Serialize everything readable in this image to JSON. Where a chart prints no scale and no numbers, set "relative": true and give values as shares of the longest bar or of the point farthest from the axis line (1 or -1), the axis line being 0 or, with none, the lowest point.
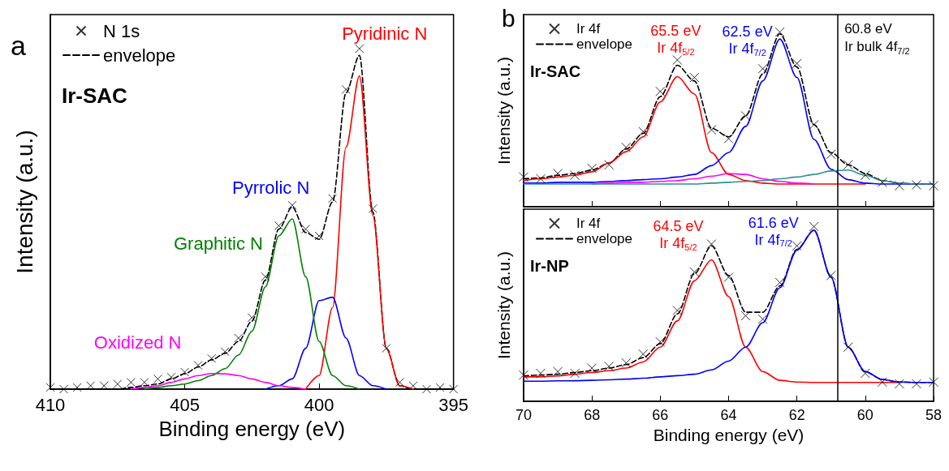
{
  "chart_data": [
    {
      "type": "line",
      "title": "a",
      "xlabel": "Binding energy (eV)",
      "ylabel": "Intensity (a.u.)",
      "relative": true,
      "legend": "top left",
      "tick_labels": "x",
      "annotations": [
        "Ir-SAC"
      ],
      "xlim": [
        410,
        395
      ],
      "xticks": [
        410,
        405,
        400,
        395
      ],
      "x": [
        410,
        409.5,
        409,
        408.5,
        408,
        407.5,
        407,
        406.5,
        406,
        405.5,
        405,
        404.5,
        404,
        403.5,
        403,
        402.5,
        402,
        401.5,
        401,
        400.5,
        400,
        399.5,
        399,
        398.5,
        398,
        397.5,
        397,
        396.5,
        396,
        395.5,
        395
      ],
      "series": [
        {
          "name": "N 1s",
          "type": "scatter",
          "marker": "cross",
          "color": "#000000",
          "values": [
            0.005,
            0,
            0.005,
            0.01,
            0.01,
            0.015,
            0.02,
            0.02,
            0.03,
            0.035,
            0.05,
            0.07,
            0.09,
            0.11,
            0.15,
            0.21,
            0.33,
            0.48,
            0.54,
            0.47,
            0.45,
            0.56,
            0.88,
            1.0,
            0.53,
            0.12,
            0.02,
            0.01,
            0,
            0.005,
            0
          ]
        },
        {
          "name": "envelope",
          "line_style": "dashed",
          "color": "#000000",
          "values": [
            0,
            0,
            0,
            0,
            0,
            0,
            0.005,
            0.01,
            0.015,
            0.03,
            0.045,
            0.065,
            0.086,
            0.105,
            0.14,
            0.2,
            0.32,
            0.47,
            0.535,
            0.46,
            0.44,
            0.55,
            0.87,
            0.98,
            0.52,
            0.12,
            0.01,
            0,
            0,
            0,
            0
          ]
        },
        {
          "name": "Pyridinic N",
          "color": "#ff0000",
          "values": [
            null,
            null,
            null,
            null,
            null,
            null,
            null,
            null,
            null,
            null,
            null,
            null,
            null,
            null,
            null,
            null,
            null,
            null,
            null,
            0,
            0.04,
            0.24,
            0.71,
            0.92,
            0.51,
            0.12,
            0.01,
            0,
            null,
            null,
            null
          ]
        },
        {
          "name": "Pyrrolic N",
          "color": "#0000ff",
          "values": [
            null,
            null,
            null,
            null,
            null,
            null,
            null,
            null,
            null,
            null,
            null,
            null,
            null,
            null,
            null,
            null,
            0,
            0.01,
            0.03,
            0.12,
            0.26,
            0.27,
            0.15,
            0.04,
            0.01,
            0,
            null,
            null,
            null,
            null,
            null
          ]
        },
        {
          "name": "Graphitic N",
          "color": "#008000",
          "values": [
            null,
            null,
            null,
            null,
            null,
            null,
            null,
            0,
            0.005,
            0.01,
            0.015,
            0.025,
            0.04,
            0.06,
            0.1,
            0.17,
            0.3,
            0.45,
            0.5,
            0.33,
            0.14,
            0.04,
            0.01,
            0,
            null,
            null,
            null,
            null,
            null,
            null,
            null
          ]
        },
        {
          "name": "Oxidized N",
          "color": "#ff00ff",
          "values": [
            null,
            null,
            null,
            null,
            null,
            null,
            0,
            0.005,
            0.01,
            0.02,
            0.03,
            0.04,
            0.046,
            0.045,
            0.04,
            0.03,
            0.02,
            0.01,
            0.005,
            0,
            null,
            null,
            null,
            null,
            null,
            null,
            null,
            null,
            null,
            null,
            null
          ]
        }
      ]
    },
    {
      "type": "line",
      "title": "b",
      "ylabel": "Intensity (a.u.)",
      "relative": true,
      "legend": "top left",
      "tick_labels": false,
      "annotations": [
        "Ir-SAC"
      ],
      "xlim": [
        70,
        58
      ],
      "xticks": [
        70,
        68,
        66,
        64,
        62,
        60,
        58
      ],
      "ref_lines": [
        {
          "axis": "x",
          "value": 60.8,
          "label": "60.8 eV\nIr bulk 4f$_{7/2}$",
          "color": "#000000"
        }
      ],
      "x": [
        70,
        69.5,
        69,
        68.5,
        68,
        67.5,
        67,
        66.5,
        66,
        65.5,
        65,
        64.5,
        64,
        63.5,
        63,
        62.5,
        62,
        61.5,
        61,
        60.5,
        60,
        59.5,
        59,
        58.5,
        58
      ],
      "series": [
        {
          "name": "Ir 4f",
          "type": "scatter",
          "marker": "cross",
          "color": "#000000",
          "values": [
            0.17,
            0.16,
            0.19,
            0.18,
            0.22,
            0.24,
            0.34,
            0.43,
            0.66,
            0.84,
            0.74,
            0.44,
            0.39,
            0.52,
            0.79,
            1.0,
            0.82,
            0.47,
            0.3,
            0.24,
            0.18,
            0.14,
            0.12,
            0.125,
            0.12
          ]
        },
        {
          "name": "envelope",
          "line_style": "dashed",
          "color": "#000000",
          "values": [
            0.16,
            0.165,
            0.18,
            0.19,
            0.21,
            0.25,
            0.33,
            0.42,
            0.63,
            0.81,
            0.72,
            0.45,
            0.4,
            0.52,
            0.76,
            0.99,
            0.8,
            0.47,
            0.31,
            0.24,
            0.19,
            0.15,
            0.135,
            0.13,
            0.13
          ]
        },
        {
          "name": "65.5 eV\nIr 4f$_{5/2}$",
          "color": "#ff0000",
          "values": [
            0.15,
            0.16,
            0.17,
            0.18,
            0.2,
            0.25,
            0.315,
            0.4,
            0.6,
            0.745,
            0.645,
            0.31,
            0.185,
            0.15,
            0.135,
            0.13,
            0.13,
            0.13,
            0.13,
            0.13,
            0.13,
            null,
            null,
            null,
            null
          ]
        },
        {
          "name": "62.5 eV\nIr 4f$_{7/2}$",
          "color": "#0000ff",
          "values": [
            0.135,
            0.135,
            0.14,
            0.14,
            0.14,
            0.145,
            0.15,
            0.155,
            0.16,
            0.17,
            0.185,
            0.235,
            0.31,
            0.46,
            0.72,
            0.96,
            0.74,
            0.385,
            0.215,
            0.155,
            0.135,
            0.13,
            0.13,
            0.13,
            0.13
          ]
        },
        {
          "color": "#ff00ff",
          "values": [
            null,
            null,
            null,
            null,
            0.13,
            0.135,
            0.14,
            0.14,
            0.145,
            0.15,
            0.16,
            0.175,
            0.19,
            0.185,
            0.16,
            0.145,
            0.135,
            0.13,
            null,
            null,
            null,
            null,
            null,
            null,
            null
          ]
        },
        {
          "color": "#2f8f8f",
          "values": [
            0.13,
            0.13,
            0.13,
            0.13,
            0.13,
            0.13,
            0.13,
            0.13,
            0.13,
            0.13,
            0.13,
            0.135,
            0.14,
            0.145,
            0.15,
            0.16,
            0.17,
            0.185,
            0.205,
            0.21,
            0.18,
            0.15,
            0.135,
            0.13,
            0.13
          ]
        }
      ]
    },
    {
      "type": "line",
      "xlabel": "Binding energy (eV)",
      "ylabel": "Intensity (a.u.)",
      "relative": true,
      "legend": "top left",
      "tick_labels": "x",
      "annotations": [
        "Ir-NP"
      ],
      "xlim": [
        70,
        58
      ],
      "xticks": [
        70,
        68,
        66,
        64,
        62,
        60,
        58
      ],
      "ref_lines": [
        {
          "axis": "x",
          "value": 60.8,
          "color": "#000000"
        }
      ],
      "x": [
        70,
        69.5,
        69,
        68.5,
        68,
        67.5,
        67,
        66.5,
        66,
        65.5,
        65,
        64.5,
        64,
        63.5,
        63,
        62.5,
        62,
        61.5,
        61,
        60.5,
        60,
        59.5,
        59,
        58.5,
        58
      ],
      "series": [
        {
          "name": "Ir 4f",
          "type": "scatter",
          "marker": "cross",
          "color": "#000000",
          "values": [
            0.15,
            0.16,
            0.17,
            0.16,
            0.19,
            0.2,
            0.22,
            0.27,
            0.34,
            0.52,
            0.74,
            0.9,
            0.71,
            0.49,
            0.47,
            0.68,
            0.89,
            1.0,
            0.72,
            0.31,
            0.16,
            0.11,
            0.1,
            0.1,
            0.11
          ]
        },
        {
          "name": "envelope",
          "line_style": "dashed",
          "color": "#000000",
          "values": [
            0.145,
            0.15,
            0.155,
            0.165,
            0.175,
            0.19,
            0.21,
            0.25,
            0.33,
            0.5,
            0.73,
            0.89,
            0.72,
            0.51,
            0.51,
            0.66,
            0.87,
            0.98,
            0.71,
            0.31,
            0.17,
            0.125,
            0.11,
            0.108,
            0.108
          ]
        },
        {
          "name": "64.5 eV\nIr 4f$_{5/2}$",
          "color": "#ff0000",
          "values": [
            0.14,
            0.14,
            0.145,
            0.155,
            0.165,
            0.175,
            0.19,
            0.225,
            0.31,
            0.46,
            0.69,
            0.81,
            0.6,
            0.31,
            0.17,
            0.12,
            0.11,
            0.108,
            0.108,
            0.108,
            0.108,
            0.108,
            0.108,
            null,
            null
          ]
        },
        {
          "name": "61.6 eV\nIr 4f$_{7/2}$",
          "color": "#0000ff",
          "values": [
            0.115,
            0.115,
            0.117,
            0.118,
            0.12,
            0.123,
            0.127,
            0.132,
            0.14,
            0.147,
            0.155,
            0.18,
            0.23,
            0.31,
            0.45,
            0.65,
            0.865,
            0.98,
            0.71,
            0.31,
            0.17,
            0.125,
            0.11,
            0.108,
            0.108
          ]
        }
      ]
    }
  ]
}
